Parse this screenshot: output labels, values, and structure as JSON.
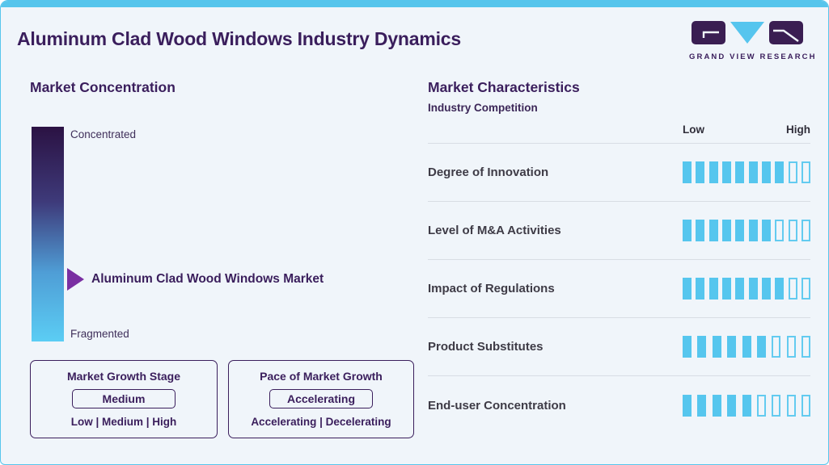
{
  "page": {
    "title": "Aluminum Clad Wood Windows Industry Dynamics",
    "accent_color": "#56c5ec",
    "heading_color": "#3a1e5c",
    "background_color": "#f0f5fa"
  },
  "logo": {
    "brand": "GRAND VIEW RESEARCH",
    "tile_color": "#3a1e52",
    "triangle_color": "#56c5ee"
  },
  "market_concentration": {
    "heading": "Market Concentration",
    "scale_top_label": "Concentrated",
    "scale_bottom_label": "Fragmented",
    "marker_label": "Aluminum Clad Wood Windows Market",
    "marker_position_pct_from_top": 71.5,
    "gradient_top_color": "#2b1243",
    "gradient_bottom_color": "#5bcdf4",
    "arrow_color": "#7a2fa2"
  },
  "growth_stage_box": {
    "title": "Market Growth Stage",
    "value": "Medium",
    "options": "Low | Medium | High"
  },
  "pace_box": {
    "title": "Pace of Market Growth",
    "value": "Accelerating",
    "options": "Accelerating | Decelerating"
  },
  "market_characteristics": {
    "heading": "Market Characteristics",
    "subheading": "Industry Competition",
    "scale_low_label": "Low",
    "scale_high_label": "High",
    "segment_fill_color": "#56c6ee",
    "rows": [
      {
        "label": "Degree of Innovation",
        "filled": 8,
        "empty": 2
      },
      {
        "label": "Level of M&A Activities",
        "filled": 7,
        "empty": 3
      },
      {
        "label": "Impact of Regulations",
        "filled": 8,
        "empty": 2
      },
      {
        "label": "Product Substitutes",
        "filled": 6,
        "empty": 3
      },
      {
        "label": "End-user Concentration",
        "filled": 5,
        "empty": 4
      }
    ]
  },
  "chart_data": [
    {
      "type": "bar",
      "title": "Market Characteristics - Industry Competition",
      "orientation": "horizontal-segmented",
      "categories": [
        "Degree of Innovation",
        "Level of M&A Activities",
        "Impact of Regulations",
        "Product Substitutes",
        "End-user Concentration"
      ],
      "values": [
        8,
        7,
        8,
        6,
        5
      ],
      "segment_totals": [
        10,
        10,
        10,
        9,
        9
      ],
      "scale": [
        "Low",
        "High"
      ],
      "legend_position": "top-right-of-rows",
      "grid": false
    },
    {
      "type": "table",
      "title": "Market Concentration",
      "rows": [
        [
          "Scale top",
          "Concentrated"
        ],
        [
          "Scale bottom",
          "Fragmented"
        ],
        [
          "Marker",
          "Aluminum Clad Wood Windows Market"
        ],
        [
          "Marker position",
          "71.5% from Concentrated toward Fragmented"
        ]
      ]
    },
    {
      "type": "table",
      "title": "Market Growth Stage",
      "rows": [
        [
          "Selected",
          "Medium"
        ],
        [
          "Options",
          "Low | Medium | High"
        ]
      ]
    },
    {
      "type": "table",
      "title": "Pace of Market Growth",
      "rows": [
        [
          "Selected",
          "Accelerating"
        ],
        [
          "Options",
          "Accelerating | Decelerating"
        ]
      ]
    }
  ]
}
